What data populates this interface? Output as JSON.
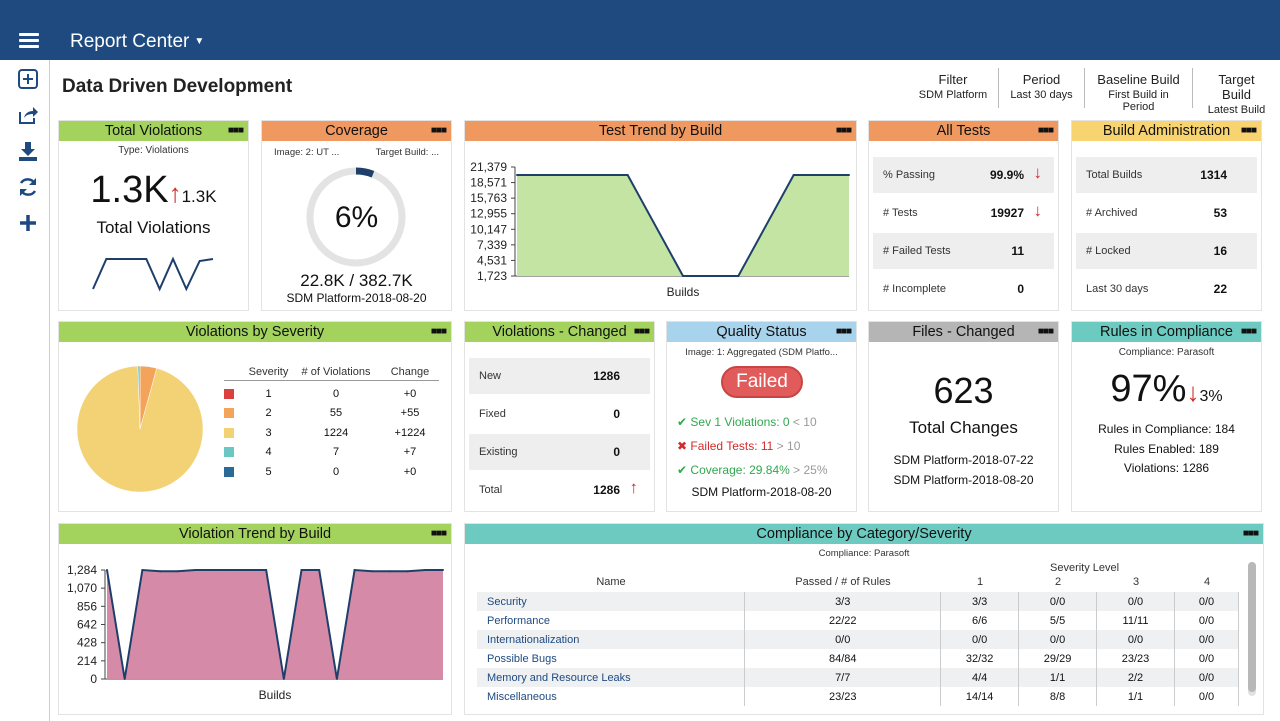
{
  "app": {
    "title": "Report Center",
    "page_title": "Data Driven Development"
  },
  "filters": [
    {
      "label": "Filter",
      "value": "SDM Platform"
    },
    {
      "label": "Period",
      "value": "Last 30 days"
    },
    {
      "label": "Baseline Build",
      "value": "First Build in Period"
    },
    {
      "label": "Target Build",
      "value": "Latest Build"
    }
  ],
  "sidebar": {
    "icons": [
      "add-widget-icon",
      "share-icon",
      "download-icon",
      "refresh-icon",
      "plus-icon"
    ]
  },
  "dots": "■■■",
  "colors": {
    "nav": "#1f4a80",
    "green": "#a4d35d",
    "orange": "#ef9960",
    "yellow": "#f8d470",
    "blue": "#a8d3ec",
    "gray": "#b5b5b5",
    "teal": "#6ccac0",
    "red": "#d32b2b"
  },
  "total_violations": {
    "title": "Total Violations",
    "type": "Type: Violations",
    "value": "1.3K",
    "baseline": "1.3K",
    "label": "Total Violations",
    "sparkline": [
      40,
      10,
      10,
      10,
      10,
      40,
      10,
      40,
      12,
      10
    ]
  },
  "coverage": {
    "title": "Coverage",
    "image": "Image: 2: UT ...",
    "target": "Target Build: ...",
    "percent": "6%",
    "percent_value": 6,
    "counts": "22.8K / 382.7K",
    "build": "SDM Platform-2018-08-20"
  },
  "test_trend": {
    "title": "Test Trend by Build",
    "xlabel": "Builds"
  },
  "all_tests": {
    "title": "All Tests",
    "rows": [
      {
        "label": "% Passing",
        "value": "99.9%",
        "arrow": "↓"
      },
      {
        "label": "# Tests",
        "value": "19927",
        "arrow": "↓"
      },
      {
        "label": "# Failed Tests",
        "value": "11",
        "arrow": ""
      },
      {
        "label": "# Incomplete",
        "value": "0",
        "arrow": ""
      }
    ]
  },
  "build_admin": {
    "title": "Build Administration",
    "rows": [
      {
        "label": "Total Builds",
        "value": "1314"
      },
      {
        "label": "# Archived",
        "value": "53"
      },
      {
        "label": "# Locked",
        "value": "16"
      },
      {
        "label": "Last 30 days",
        "value": "22"
      }
    ]
  },
  "violations_by_severity": {
    "title": "Violations by Severity",
    "columns": [
      "Severity",
      "# of Violations",
      "Change"
    ],
    "rows": [
      {
        "severity": "1",
        "count": "0",
        "change": "+0",
        "color": "#d9413f"
      },
      {
        "severity": "2",
        "count": "55",
        "change": "+55",
        "color": "#f3a35a"
      },
      {
        "severity": "3",
        "count": "1224",
        "change": "+1224",
        "color": "#f3d275"
      },
      {
        "severity": "4",
        "count": "7",
        "change": "+7",
        "color": "#6cc6c1"
      },
      {
        "severity": "5",
        "count": "0",
        "change": "+0",
        "color": "#2b6a96"
      }
    ]
  },
  "violations_changed": {
    "title": "Violations - Changed",
    "rows": [
      {
        "label": "New",
        "value": "1286",
        "arrow": ""
      },
      {
        "label": "Fixed",
        "value": "0",
        "arrow": ""
      },
      {
        "label": "Existing",
        "value": "0",
        "arrow": ""
      },
      {
        "label": "Total",
        "value": "1286",
        "arrow": "↑"
      }
    ]
  },
  "quality_status": {
    "title": "Quality Status",
    "image": "Image: 1: Aggregated (SDM Platfo...",
    "status": "Failed",
    "checks": [
      {
        "icon": "check",
        "text": "Sev 1 Violations: 0",
        "threshold": " < 10"
      },
      {
        "icon": "x",
        "text": "Failed Tests: 11",
        "threshold": " > 10"
      },
      {
        "icon": "check",
        "text": "Coverage: 29.84%",
        "threshold": " > 25%"
      }
    ],
    "build": "SDM Platform-2018-08-20"
  },
  "files_changed": {
    "title": "Files - Changed",
    "value": "623",
    "label": "Total Changes",
    "build1": "SDM Platform-2018-07-22",
    "build2": "SDM Platform-2018-08-20"
  },
  "rules_compliance": {
    "title": "Rules in Compliance",
    "subtitle": "Compliance: Parasoft",
    "value": "97%",
    "change": "3%",
    "line1": "Rules in Compliance: 184",
    "line2": "Rules Enabled: 189",
    "line3": "Violations: 1286"
  },
  "violation_trend": {
    "title": "Violation Trend by Build",
    "xlabel": "Builds"
  },
  "compliance_category": {
    "title": "Compliance by Category/Severity",
    "subtitle": "Compliance: Parasoft",
    "severity_label": "Severity Level",
    "columns": [
      "Name",
      "Passed / # of Rules",
      "1",
      "2",
      "3",
      "4"
    ],
    "rows": [
      [
        "Security",
        "3/3",
        "3/3",
        "0/0",
        "0/0",
        "0/0"
      ],
      [
        "Performance",
        "22/22",
        "6/6",
        "5/5",
        "11/11",
        "0/0"
      ],
      [
        "Internationalization",
        "0/0",
        "0/0",
        "0/0",
        "0/0",
        "0/0"
      ],
      [
        "Possible Bugs",
        "84/84",
        "32/32",
        "29/29",
        "23/23",
        "0/0"
      ],
      [
        "Memory and Resource Leaks",
        "7/7",
        "4/4",
        "1/1",
        "2/2",
        "0/0"
      ],
      [
        "Miscellaneous",
        "23/23",
        "14/14",
        "8/8",
        "1/1",
        "0/0"
      ]
    ]
  },
  "chart_data": [
    {
      "type": "area",
      "title": "Test Trend by Build",
      "xlabel": "Builds",
      "ylabel": "",
      "yticks": [
        "21,379",
        "18,571",
        "15,763",
        "12,955",
        "10,147",
        "7,339",
        "4,531",
        "1,723"
      ],
      "ylim": [
        1723,
        21379
      ],
      "x": [
        1,
        2,
        3,
        4,
        5,
        6,
        7
      ],
      "values": [
        19927,
        19927,
        19927,
        1723,
        1723,
        19927,
        19927
      ]
    },
    {
      "type": "pie",
      "title": "Violations by Severity",
      "categories": [
        "1",
        "2",
        "3",
        "4",
        "5"
      ],
      "values": [
        0,
        55,
        1224,
        7,
        0
      ],
      "colors": [
        "#d9413f",
        "#f3a35a",
        "#f3d275",
        "#6cc6c1",
        "#2b6a96"
      ]
    },
    {
      "type": "area",
      "title": "Violation Trend by Build",
      "xlabel": "Builds",
      "ylabel": "",
      "yticks": [
        "1,284",
        "1,070",
        "856",
        "642",
        "428",
        "214",
        "0"
      ],
      "ylim": [
        0,
        1284
      ],
      "x": [
        1,
        2,
        3,
        4,
        5,
        6,
        7,
        8,
        9,
        10,
        11,
        12,
        13,
        14,
        15,
        16,
        17,
        18,
        19,
        20
      ],
      "values": [
        1284,
        0,
        1284,
        1270,
        1270,
        1284,
        1284,
        1284,
        1284,
        1284,
        0,
        1284,
        1284,
        0,
        1284,
        1270,
        1270,
        1270,
        1284,
        1284
      ]
    }
  ]
}
